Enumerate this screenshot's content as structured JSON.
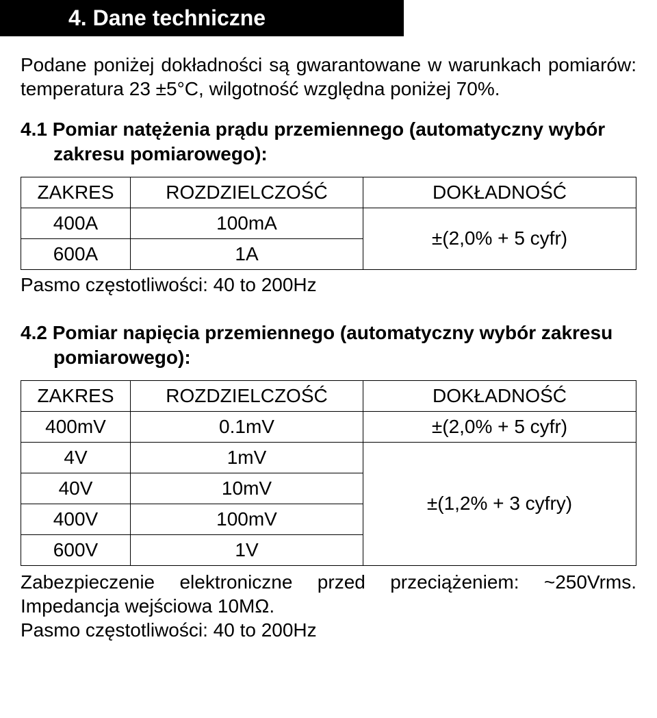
{
  "section": {
    "number_title": "4.   Dane techniczne"
  },
  "intro": "Podane poniżej dokładności są gwarantowane w warunkach pomiarów: temperatura 23 ±5°C, wilgotność względna poniżej 70%.",
  "sub_4_1": {
    "title": "4.1 Pomiar natężenia prądu przemiennego (automatyczny wybór zakresu pomiarowego):",
    "headers": [
      "ZAKRES",
      "ROZDZIELCZOŚĆ",
      "DOKŁADNOŚĆ"
    ],
    "rows": [
      {
        "zakres": "400A",
        "rozdz": "100mA"
      },
      {
        "zakres": "600A",
        "rozdz": "1A"
      }
    ],
    "accuracy": "±(2,0% + 5 cyfr)",
    "note": "Pasmo częstotliwości: 40 to 200Hz"
  },
  "sub_4_2": {
    "title": "4.2 Pomiar napięcia przemiennego (automatyczny wybór zakresu pomiarowego):",
    "headers": [
      "ZAKRES",
      "ROZDZIELCZOŚĆ",
      "DOKŁADNOŚĆ"
    ],
    "rows": [
      {
        "zakres": "400mV",
        "rozdz": "0.1mV",
        "dokl": "±(2,0% + 5 cyfr)"
      },
      {
        "zakres": "4V",
        "rozdz": "1mV"
      },
      {
        "zakres": "40V",
        "rozdz": "10mV"
      },
      {
        "zakres": "400V",
        "rozdz": "100mV"
      },
      {
        "zakres": "600V",
        "rozdz": "1V"
      }
    ],
    "accuracy_block": "±(1,2% + 3 cyfry)",
    "footer1": "Zabezpieczenie elektroniczne przed przeciążeniem: ~250Vrms. Impedancja wejściowa 10MΩ.",
    "footer2": "Pasmo częstotliwości: 40 to 200Hz"
  }
}
